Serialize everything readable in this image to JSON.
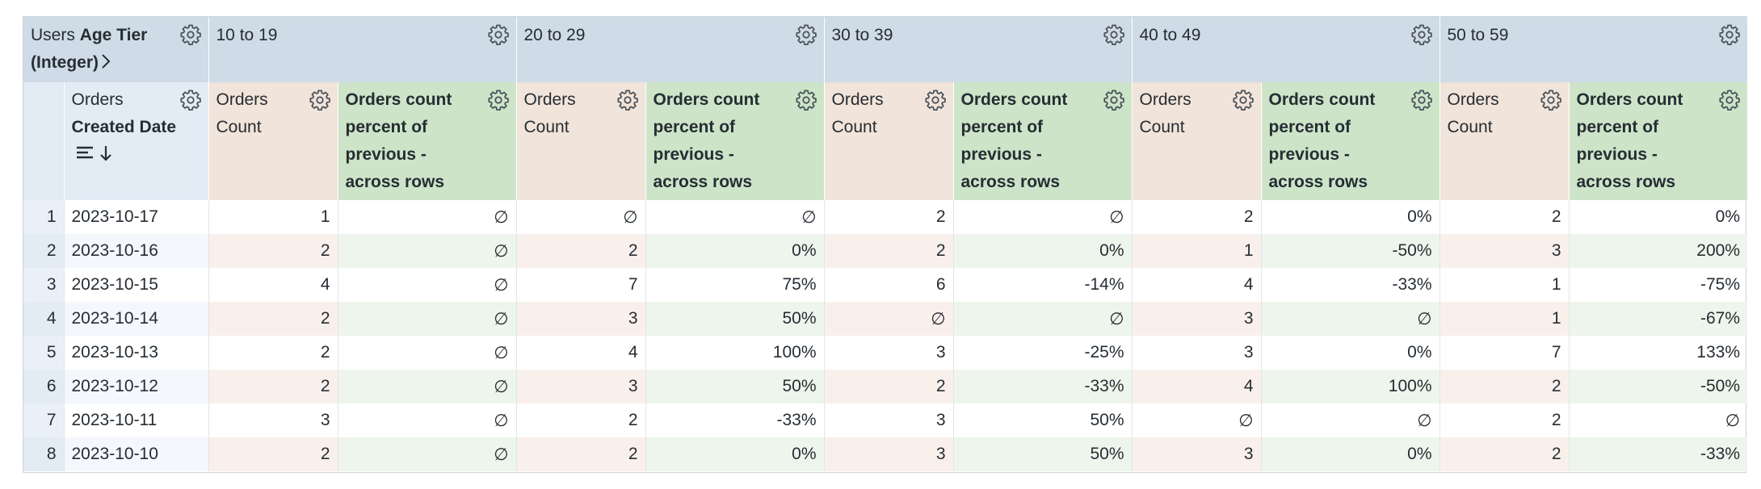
{
  "table": {
    "pivot_header": {
      "view": "Users",
      "field": "Age Tier",
      "suffix": "(Integer)"
    },
    "pivots": [
      "10 to 19",
      "20 to 29",
      "30 to 39",
      "40 to 49",
      "50 to 59"
    ],
    "row_header": {
      "view": "Orders",
      "field": "Created Date"
    },
    "measures": [
      {
        "view": "Orders",
        "field": "Count"
      },
      {
        "label": "Orders count percent of previous - across rows"
      }
    ],
    "rows": [
      {
        "index": 1,
        "date": "2023-10-17",
        "cells": [
          "1",
          "∅",
          "∅",
          "∅",
          "2",
          "∅",
          "2",
          "0%",
          "2",
          "0%"
        ]
      },
      {
        "index": 2,
        "date": "2023-10-16",
        "cells": [
          "2",
          "∅",
          "2",
          "0%",
          "2",
          "0%",
          "1",
          "-50%",
          "3",
          "200%"
        ]
      },
      {
        "index": 3,
        "date": "2023-10-15",
        "cells": [
          "4",
          "∅",
          "7",
          "75%",
          "6",
          "-14%",
          "4",
          "-33%",
          "1",
          "-75%"
        ]
      },
      {
        "index": 4,
        "date": "2023-10-14",
        "cells": [
          "2",
          "∅",
          "3",
          "50%",
          "∅",
          "∅",
          "3",
          "∅",
          "1",
          "-67%"
        ]
      },
      {
        "index": 5,
        "date": "2023-10-13",
        "cells": [
          "2",
          "∅",
          "4",
          "100%",
          "3",
          "-25%",
          "3",
          "0%",
          "7",
          "133%"
        ]
      },
      {
        "index": 6,
        "date": "2023-10-12",
        "cells": [
          "2",
          "∅",
          "3",
          "50%",
          "2",
          "-33%",
          "4",
          "100%",
          "2",
          "-50%"
        ]
      },
      {
        "index": 7,
        "date": "2023-10-11",
        "cells": [
          "3",
          "∅",
          "2",
          "-33%",
          "3",
          "50%",
          "∅",
          "∅",
          "2",
          "∅"
        ]
      },
      {
        "index": 8,
        "date": "2023-10-10",
        "cells": [
          "2",
          "∅",
          "2",
          "0%",
          "3",
          "50%",
          "3",
          "0%",
          "2",
          "-33%"
        ]
      }
    ]
  }
}
